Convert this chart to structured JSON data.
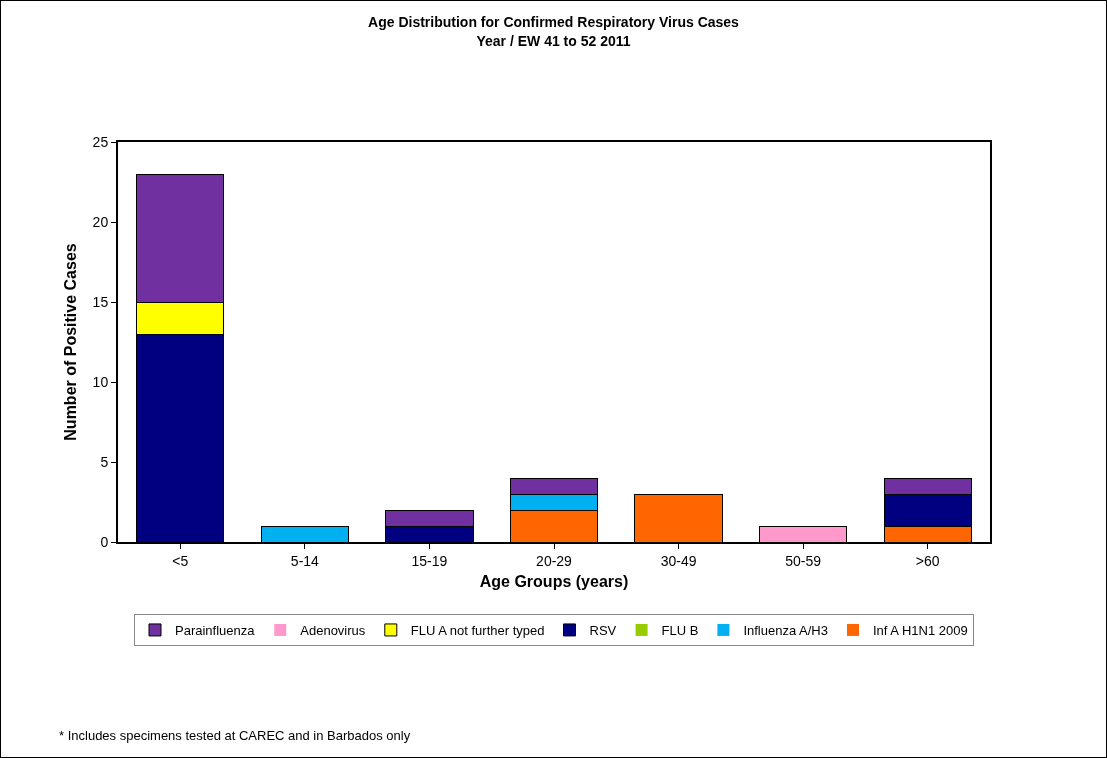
{
  "chart_data": {
    "type": "bar",
    "title": "Age Distribution for Confirmed Respiratory Virus Cases",
    "subtitle": "Year / EW 41 to 52 2011",
    "xlabel": "Age Groups (years)",
    "ylabel": "Number of Positive Cases",
    "categories": [
      "<5",
      "5-14",
      "15-19",
      "20-29",
      "30-49",
      "50-59",
      ">60"
    ],
    "stacked": true,
    "ylim": [
      0,
      25
    ],
    "yticks": [
      0,
      5,
      10,
      15,
      20,
      25
    ],
    "grid": false,
    "legend": "bottom",
    "series": [
      {
        "name": "Inf A H1N1 2009",
        "color": "#ff6600",
        "values": [
          0,
          0,
          0,
          2,
          3,
          0,
          1
        ]
      },
      {
        "name": "Influenza A/H3",
        "color": "#00b0f0",
        "values": [
          0,
          1,
          0,
          1,
          0,
          0,
          0
        ]
      },
      {
        "name": "FLU B",
        "color": "#99cc00",
        "values": [
          0,
          0,
          0,
          0,
          0,
          0,
          0
        ]
      },
      {
        "name": "RSV",
        "color": "#000080",
        "values": [
          13,
          0,
          1,
          0,
          0,
          0,
          2
        ]
      },
      {
        "name": "FLU A not further typed",
        "color": "#ffff00",
        "values": [
          2,
          0,
          0,
          0,
          0,
          0,
          0
        ]
      },
      {
        "name": "Adenovirus",
        "color": "#ff99cc",
        "values": [
          0,
          0,
          0,
          0,
          0,
          1,
          0
        ]
      },
      {
        "name": "Parainfluenza",
        "color": "#7030a0",
        "values": [
          8,
          0,
          1,
          1,
          0,
          0,
          1
        ]
      }
    ],
    "annotations": [
      "* Includes specimens tested at CAREC and in Barbados only"
    ]
  }
}
